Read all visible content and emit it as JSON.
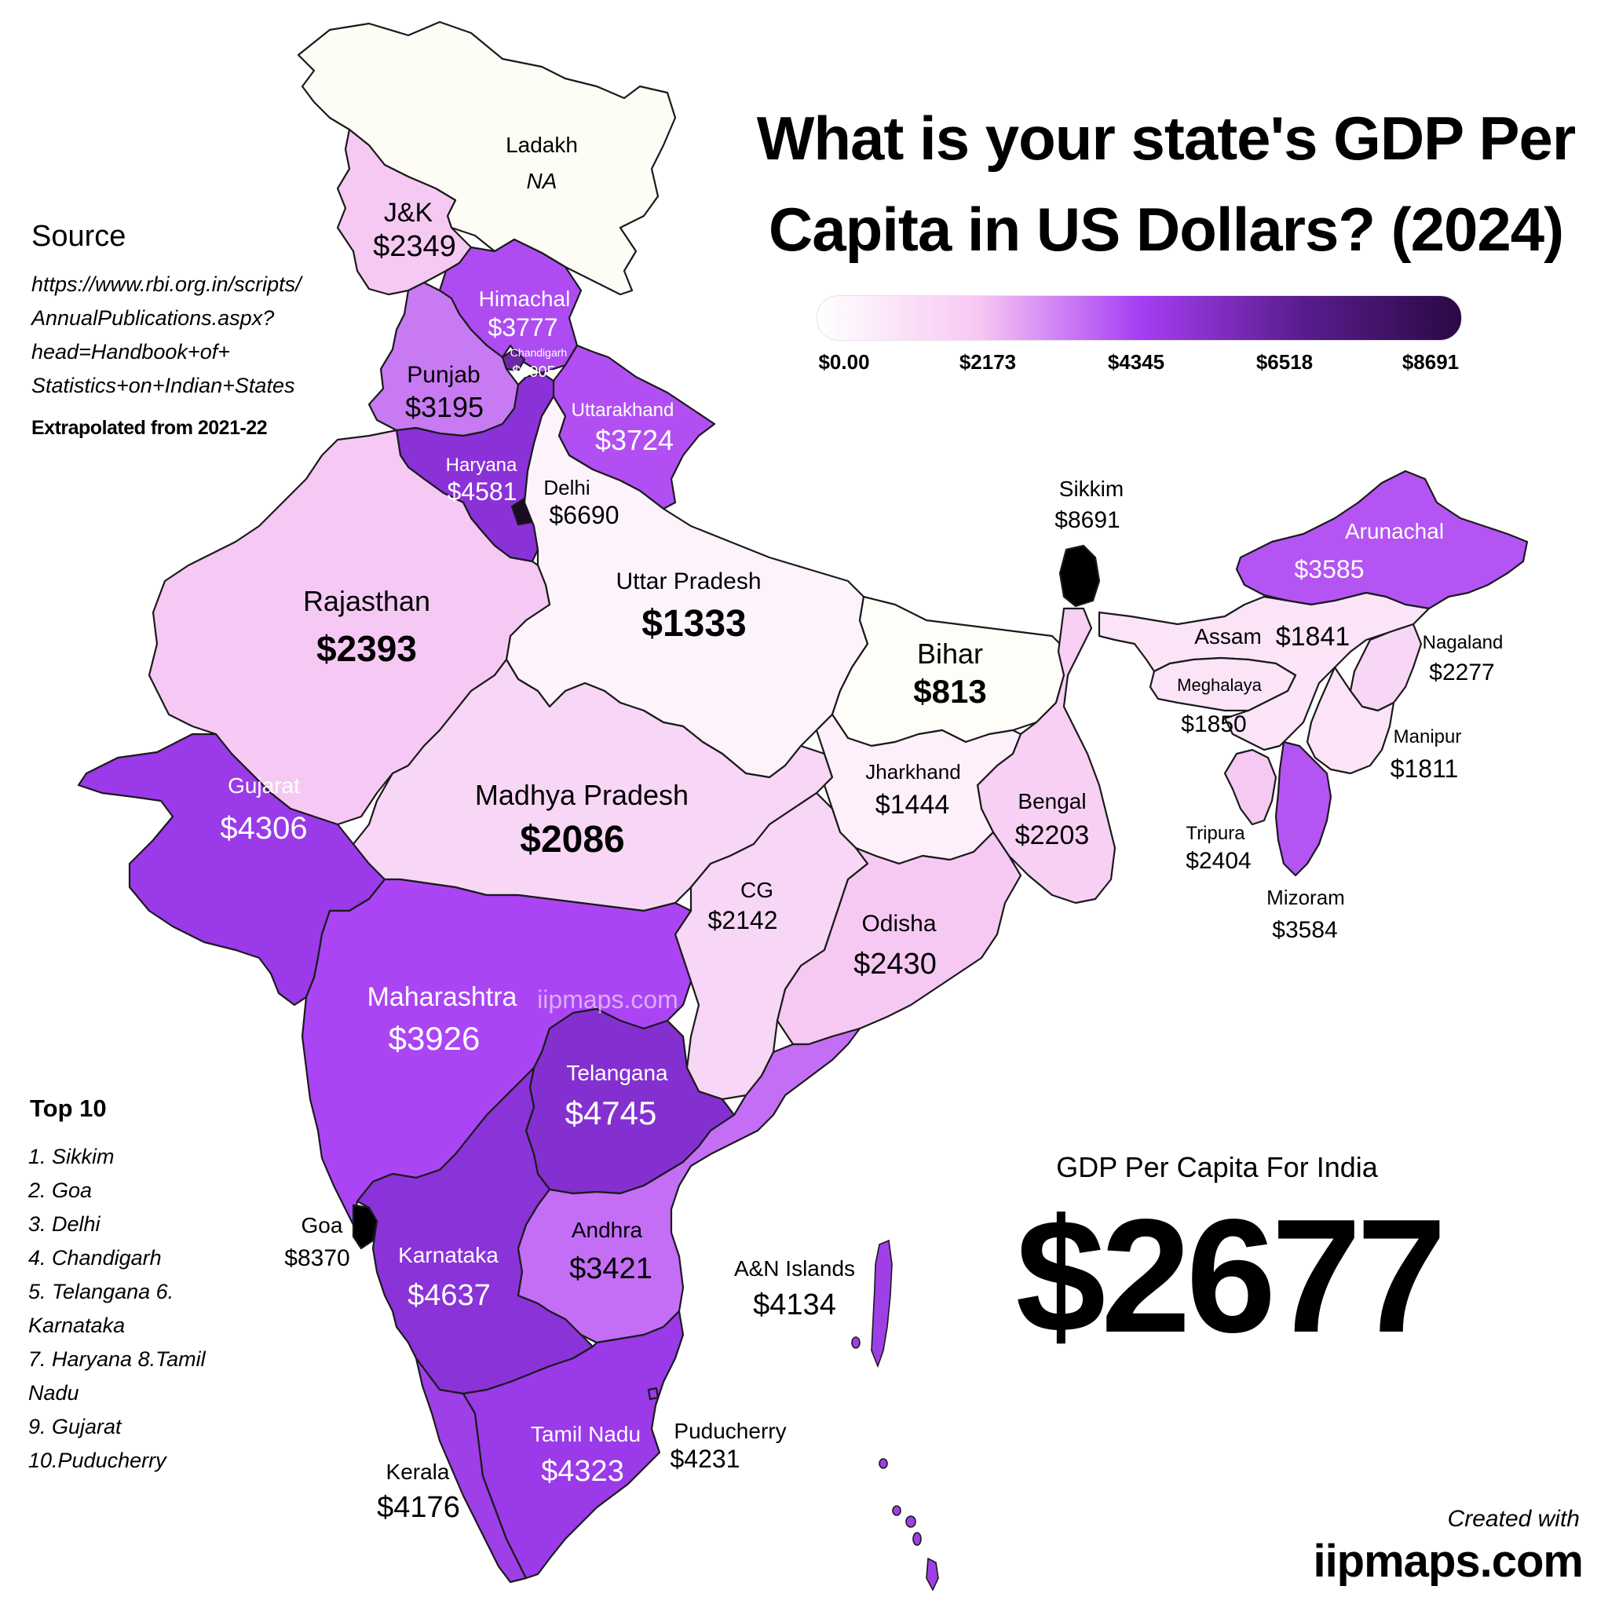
{
  "title": "What is your state's GDP Per Capita in US Dollars? (2024)",
  "title_lines": [
    "What is your state's GDP Per",
    "Capita in US Dollars? (2024)"
  ],
  "legend": {
    "ticks": [
      "$0.00",
      "$2173",
      "$4345",
      "$6518",
      "$8691"
    ],
    "min": 0,
    "max": 8691,
    "colors": [
      "#ffffff",
      "#f8c7f3",
      "#a63ef4",
      "#5a1d8e",
      "#2a0945"
    ]
  },
  "source": {
    "heading": "Source",
    "url_lines": [
      "https://www.rbi.org.in/scripts/",
      "AnnualPublications.aspx?",
      "head=Handbook+of+",
      "Statistics+on+Indian+States"
    ],
    "note": "Extrapolated from 2021-22"
  },
  "top10": {
    "heading": "Top 10",
    "items": [
      "1. Sikkim",
      "2. Goa",
      "3. Delhi",
      "4. Chandigarh",
      "5. Telangana 6.",
      "Karnataka",
      "7. Haryana 8.Tamil",
      "Nadu",
      "9. Gujarat",
      "10.Puducherry"
    ]
  },
  "national": {
    "label": "GDP Per Capita For India",
    "value": "$2677"
  },
  "watermark": "iipmaps.com",
  "credit": {
    "line1": "Created with",
    "line2": "iipmaps.com"
  },
  "regions": {
    "ladakh": {
      "name": "Ladakh",
      "value_text": "NA",
      "value": null,
      "color": "#fdfdf6"
    },
    "jk": {
      "name": "J&K",
      "value_text": "$2349",
      "value": 2349,
      "color": "#f6c9f3"
    },
    "himachal": {
      "name": "Himachal",
      "value_text": "$3777",
      "value": 3777,
      "color": "#ae4cf2"
    },
    "chandigarh": {
      "name": "Chandigarh",
      "value_text": "$5905",
      "value": 5905,
      "color": "#6d28a8"
    },
    "punjab": {
      "name": "Punjab",
      "value_text": "$3195",
      "value": 3195,
      "color": "#c77af2"
    },
    "uttarakhand": {
      "name": "Uttarakhand",
      "value_text": "$3724",
      "value": 3724,
      "color": "#b24ff2"
    },
    "haryana": {
      "name": "Haryana",
      "value_text": "$4581",
      "value": 4581,
      "color": "#8a32d8"
    },
    "delhi": {
      "name": "Delhi",
      "value_text": "$6690",
      "value": 6690,
      "color": "#1a0a24"
    },
    "uttar_pradesh": {
      "name": "Uttar Pradesh",
      "value_text": "$1333",
      "value": 1333,
      "color": "#fdf4fb"
    },
    "rajasthan": {
      "name": "Rajasthan",
      "value_text": "$2393",
      "value": 2393,
      "color": "#f6c9f4"
    },
    "gujarat": {
      "name": "Gujarat",
      "value_text": "$4306",
      "value": 4306,
      "color": "#9a3ae8"
    },
    "madhya_pradesh": {
      "name": "Madhya Pradesh",
      "value_text": "$2086",
      "value": 2086,
      "color": "#f8d6f5"
    },
    "bihar": {
      "name": "Bihar",
      "value_text": "$813",
      "value": 813,
      "color": "#fefdf7"
    },
    "sikkim": {
      "name": "Sikkim",
      "value_text": "$8691",
      "value": 8691,
      "color": "#000000"
    },
    "arunachal": {
      "name": "Arunachal",
      "value_text": "$3585",
      "value": 3585,
      "color": "#b454f2"
    },
    "assam": {
      "name": "Assam",
      "value_text": "$1841",
      "value": 1841,
      "color": "#fbe4f8"
    },
    "meghalaya": {
      "name": "Meghalaya",
      "value_text": "$1850",
      "value": 1850,
      "color": "#fbe4f8"
    },
    "nagaland": {
      "name": "Nagaland",
      "value_text": "$2277",
      "value": 2277,
      "color": "#f8d6f5"
    },
    "manipur": {
      "name": "Manipur",
      "value_text": "$1811",
      "value": 1811,
      "color": "#fbe4f8"
    },
    "mizoram": {
      "name": "Mizoram",
      "value_text": "$3584",
      "value": 3584,
      "color": "#b454f2"
    },
    "tripura": {
      "name": "Tripura",
      "value_text": "$2404",
      "value": 2404,
      "color": "#f6c9f3"
    },
    "jharkhand": {
      "name": "Jharkhand",
      "value_text": "$1444",
      "value": 1444,
      "color": "#fdf0fb"
    },
    "bengal": {
      "name": "Bengal",
      "value_text": "$2203",
      "value": 2203,
      "color": "#f7d0f4"
    },
    "cg": {
      "name": "CG",
      "value_text": "$2142",
      "value": 2142,
      "color": "#f8d6f5"
    },
    "odisha": {
      "name": "Odisha",
      "value_text": "$2430",
      "value": 2430,
      "color": "#f6c9f3"
    },
    "maharashtra": {
      "name": "Maharashtra",
      "value_text": "$3926",
      "value": 3926,
      "color": "#ab45f4"
    },
    "telangana": {
      "name": "Telangana",
      "value_text": "$4745",
      "value": 4745,
      "color": "#8430d0"
    },
    "goa": {
      "name": "Goa",
      "value_text": "$8370",
      "value": 8370,
      "color": "#000000"
    },
    "karnataka": {
      "name": "Karnataka",
      "value_text": "$4637",
      "value": 4637,
      "color": "#8a33d8"
    },
    "andhra": {
      "name": "Andhra",
      "value_text": "$3421",
      "value": 3421,
      "color": "#c36ef5"
    },
    "an_islands": {
      "name": "A&N Islands",
      "value_text": "$4134",
      "value": 4134,
      "color": "#9e40e6"
    },
    "puducherry": {
      "name": "Puducherry",
      "value_text": "$4231",
      "value": 4231,
      "color": "#9a3ae8"
    },
    "kerala": {
      "name": "Kerala",
      "value_text": "$4176",
      "value": 4176,
      "color": "#9e3fe8"
    },
    "tamil_nadu": {
      "name": "Tamil Nadu",
      "value_text": "$4323",
      "value": 4323,
      "color": "#9a3ae8"
    }
  }
}
